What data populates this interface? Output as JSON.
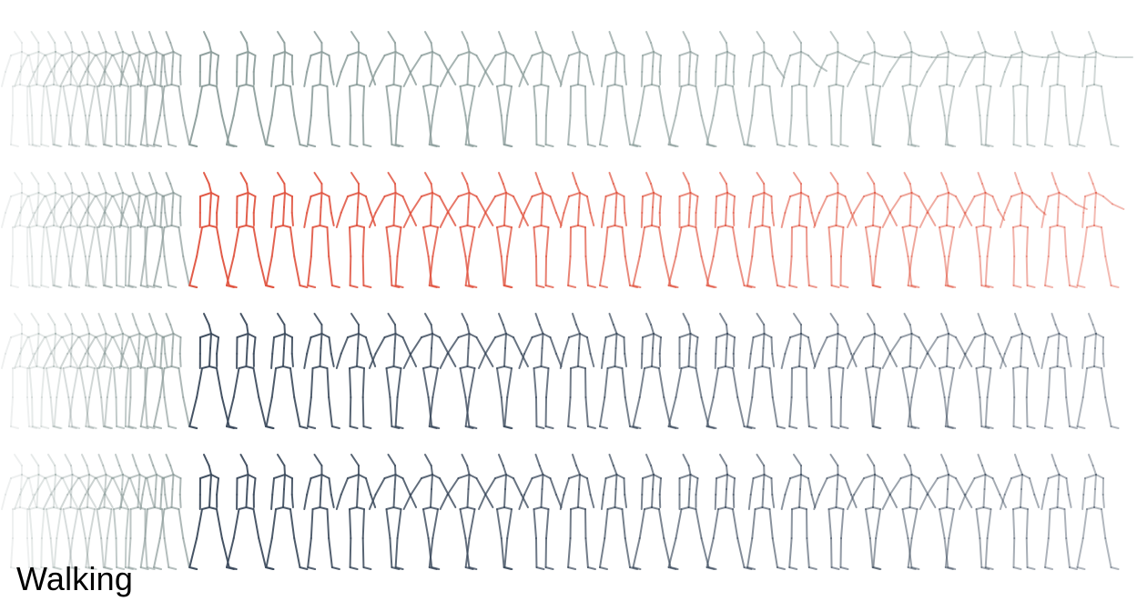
{
  "caption": "Walking",
  "palette": {
    "context": "#8a9a98",
    "row1": "#8d9e9c",
    "row2": "#e0533f",
    "row3": "#3b4a5c",
    "row4": "#3b4a5c"
  },
  "sequence": {
    "context_frames_per_row": 10,
    "predicted_frames_per_row": 25
  },
  "rows": [
    {
      "name": "row-1",
      "color_key": "row1",
      "fade": true
    },
    {
      "name": "row-2",
      "color_key": "row2",
      "fade": true
    },
    {
      "name": "row-3",
      "color_key": "row3",
      "fade": true
    },
    {
      "name": "row-4",
      "color_key": "row4",
      "fade": true
    }
  ]
}
